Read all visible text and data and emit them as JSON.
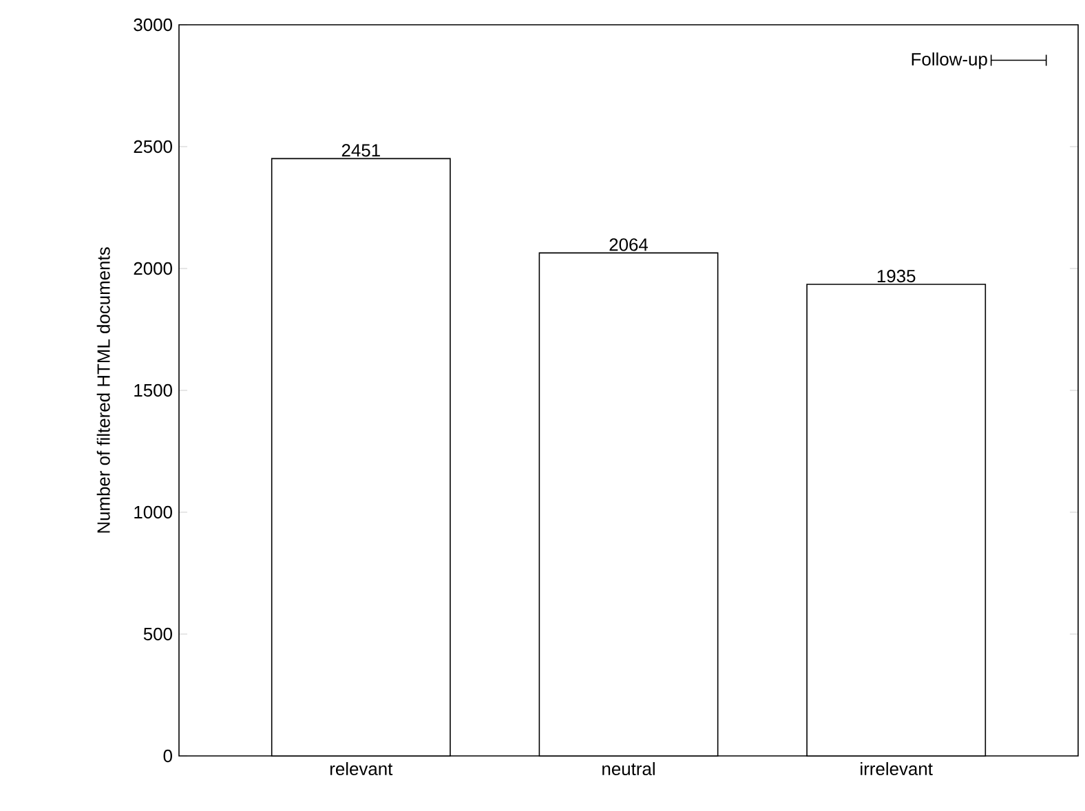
{
  "chart_data": {
    "type": "bar",
    "ylabel": "Number of filtered HTML documents",
    "categories": [
      "relevant",
      "neutral",
      "irrelevant"
    ],
    "series": [
      {
        "name": "Follow-up",
        "color": "#000000",
        "values": [
          2451,
          2064,
          1935
        ]
      }
    ],
    "ylim": [
      0,
      3000
    ],
    "yticks": [
      0,
      500,
      1000,
      1500,
      2000,
      2500,
      3000
    ],
    "data_labels": true,
    "legend": "top right"
  }
}
